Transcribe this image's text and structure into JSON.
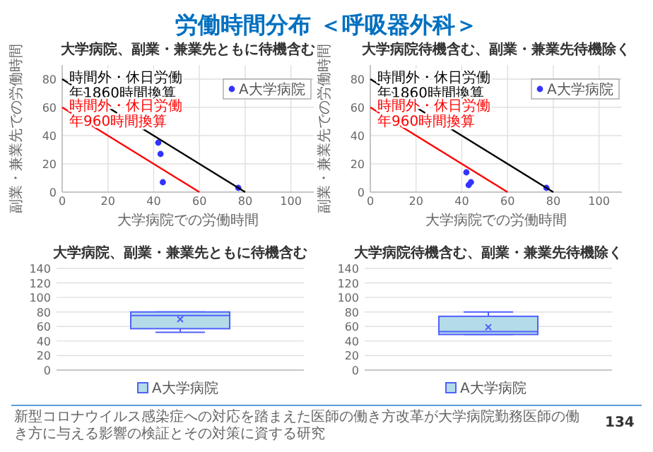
{
  "chart_data": [
    {
      "type": "other",
      "title": "労働時間分布 ＜呼吸器外科＞",
      "annotations": [
        "新型コロナウイルス感染症への対応を踏まえた医師の働き方改革が大学病院勤務医師の働き方に与える影響の検証とその対策に資する研究",
        "134"
      ]
    },
    {
      "type": "scatter",
      "title": "大学病院、副業・兼業先ともに待機含む",
      "xlabel": "大学病院での労働時間",
      "ylabel": "副業・兼業先での労働時間",
      "xlim": [
        0,
        110
      ],
      "xticks": [
        0,
        20,
        40,
        60,
        80,
        100
      ],
      "ylim": [
        0,
        90
      ],
      "yticks": [
        0,
        20,
        40,
        60,
        80
      ],
      "grid": true,
      "legend": "top right",
      "series": [
        {
          "name": "A大学病院",
          "color": "#3333ff",
          "marker": "circle",
          "x": [
            42,
            43,
            44,
            77
          ],
          "values": [
            35,
            27,
            7,
            3
          ]
        },
        {
          "name": "時間外・休日労働年1860時間換算",
          "type": "line",
          "color": "#000000",
          "x": [
            0,
            80
          ],
          "values": [
            80,
            0
          ]
        },
        {
          "name": "時間外・休日労働年960時間換算",
          "type": "line",
          "color": "#ff0000",
          "x": [
            0,
            60
          ],
          "values": [
            60,
            0
          ]
        }
      ]
    },
    {
      "type": "scatter",
      "title": "大学病院待機含む、副業・兼業先待機除く",
      "xlabel": "大学病院での労働時間",
      "ylabel": "副業・兼業先での労働時間",
      "xlim": [
        0,
        110
      ],
      "xticks": [
        0,
        20,
        40,
        60,
        80,
        100
      ],
      "ylim": [
        0,
        90
      ],
      "yticks": [
        0,
        20,
        40,
        60,
        80
      ],
      "grid": true,
      "legend": "top right",
      "series": [
        {
          "name": "A大学病院",
          "color": "#3333ff",
          "marker": "circle",
          "x": [
            42,
            43,
            44,
            77
          ],
          "values": [
            14,
            5,
            7,
            3
          ]
        },
        {
          "name": "時間外・休日労働年1860時間換算",
          "type": "line",
          "color": "#000000",
          "x": [
            0,
            80
          ],
          "values": [
            80,
            0
          ]
        },
        {
          "name": "時間外・休日労働年960時間換算",
          "type": "line",
          "color": "#ff0000",
          "x": [
            0,
            60
          ],
          "values": [
            60,
            0
          ]
        }
      ]
    },
    {
      "type": "box",
      "title": "大学病院、副業・兼業先ともに待機含む",
      "categories": [
        null
      ],
      "ylim": [
        0,
        140
      ],
      "yticks": [
        0,
        20,
        40,
        60,
        80,
        100,
        120,
        140
      ],
      "grid": "y",
      "legend": "bottom",
      "series": [
        {
          "name": "A大学病院",
          "color": "#5060ff",
          "boxes": [
            {
              "low": 52,
              "q1": 57,
              "median": 75,
              "q3": 80,
              "high": 80,
              "mean": 70
            }
          ]
        }
      ]
    },
    {
      "type": "box",
      "title": "大学病院待機含む、副業・兼業先待機除く",
      "categories": [
        null
      ],
      "ylim": [
        0,
        140
      ],
      "yticks": [
        0,
        20,
        40,
        60,
        80,
        100,
        120,
        140
      ],
      "grid": "y",
      "legend": "bottom",
      "series": [
        {
          "name": "A大学病院",
          "color": "#5060ff",
          "boxes": [
            {
              "low": 49,
              "q1": 49,
              "median": 53,
              "q3": 74,
              "high": 80,
              "mean": 59
            }
          ]
        }
      ]
    }
  ]
}
